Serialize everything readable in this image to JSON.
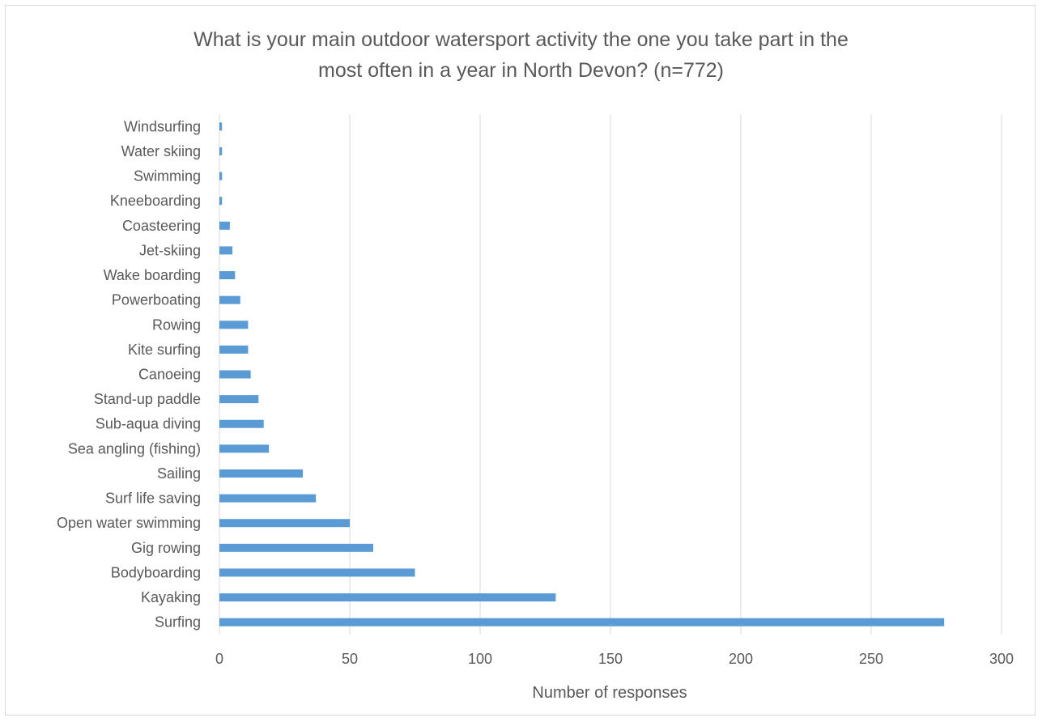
{
  "chart_data": {
    "type": "bar",
    "orientation": "horizontal",
    "title": "What is your main outdoor watersport activity the one you take part in the most often in a year in North Devon? (n=772)",
    "xlabel": "Number of responses",
    "ylabel": "",
    "xlim": [
      0,
      300
    ],
    "xticks": [
      0,
      50,
      100,
      150,
      200,
      250,
      300
    ],
    "grid": true,
    "bar_color": "#5b9bd5",
    "categories": [
      "Surfing",
      "Kayaking",
      "Bodyboarding",
      "Gig rowing",
      "Open water swimming",
      "Surf life saving",
      "Sailing",
      "Sea angling (fishing)",
      "Sub-aqua diving",
      "Stand-up paddle",
      "Canoeing",
      "Kite surfing",
      "Rowing",
      "Powerboating",
      "Wake boarding",
      "Jet-skiing",
      "Coasteering",
      "Kneeboarding",
      "Swimming",
      "Water skiing",
      "Windsurfing"
    ],
    "values": [
      278,
      129,
      75,
      59,
      50,
      37,
      32,
      19,
      17,
      15,
      12,
      11,
      11,
      8,
      6,
      5,
      4,
      1,
      1,
      1,
      1
    ]
  }
}
